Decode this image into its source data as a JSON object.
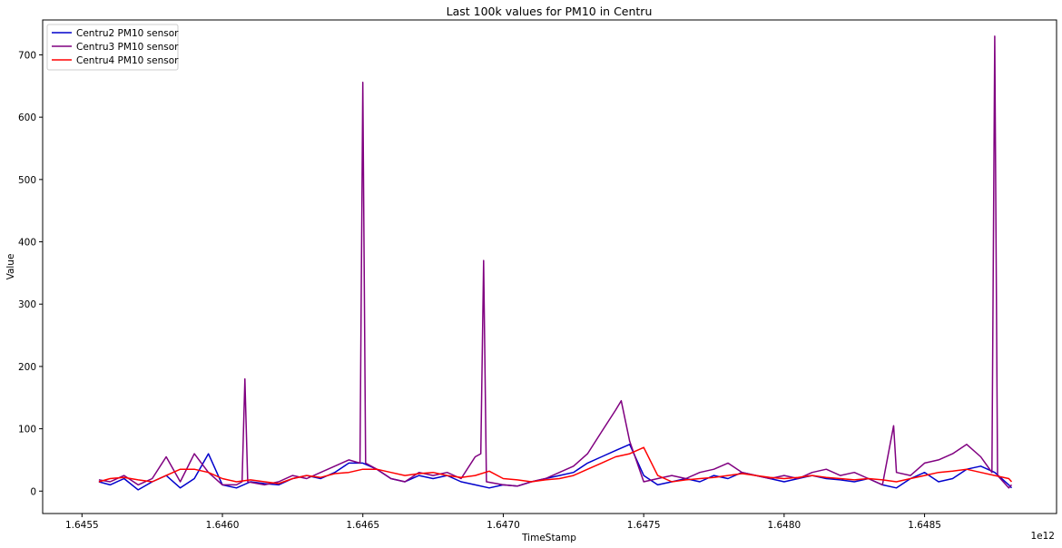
{
  "chart_data": {
    "type": "line",
    "title": "Last 100k values for PM10 in Centru",
    "xlabel": "TimeStamp",
    "ylabel": "Value",
    "x_offset_label": "1e12",
    "x_ticks": [
      1.6455,
      1.646,
      1.6465,
      1.647,
      1.6475,
      1.648,
      1.6485
    ],
    "x_tick_labels": [
      "1.6455",
      "1.6460",
      "1.6465",
      "1.6470",
      "1.6475",
      "1.6480",
      "1.6485"
    ],
    "y_ticks": [
      0,
      100,
      200,
      300,
      400,
      500,
      600,
      700
    ],
    "y_tick_labels": [
      "0",
      "100",
      "200",
      "300",
      "400",
      "500",
      "600",
      "700"
    ],
    "xlim": [
      1.64536,
      1.64897
    ],
    "ylim": [
      -36,
      756
    ],
    "grid": false,
    "legend_position": "upper-left",
    "series": [
      {
        "name": "Centru2 PM10 sensor",
        "color": "#0000cc",
        "x": [
          1.64556,
          1.6456,
          1.64565,
          1.6457,
          1.64575,
          1.6458,
          1.64585,
          1.6459,
          1.64595,
          1.646,
          1.64605,
          1.6461,
          1.64615,
          1.6462,
          1.64625,
          1.6463,
          1.64635,
          1.6464,
          1.64645,
          1.6465,
          1.64655,
          1.6466,
          1.64665,
          1.6467,
          1.64675,
          1.6468,
          1.64685,
          1.6469,
          1.64695,
          1.647,
          1.64705,
          1.6471,
          1.64715,
          1.6472,
          1.64725,
          1.6473,
          1.64735,
          1.6474,
          1.64745,
          1.6475,
          1.64755,
          1.6476,
          1.64765,
          1.6477,
          1.64775,
          1.6478,
          1.64785,
          1.6479,
          1.64795,
          1.648,
          1.64805,
          1.6481,
          1.64815,
          1.6482,
          1.64825,
          1.6483,
          1.64835,
          1.6484,
          1.64845,
          1.6485,
          1.64855,
          1.6486,
          1.64865,
          1.6487,
          1.64875,
          1.6488,
          1.64881
        ],
        "y": [
          15,
          10,
          20,
          2,
          15,
          25,
          5,
          20,
          60,
          10,
          5,
          15,
          12,
          10,
          20,
          25,
          20,
          30,
          45,
          45,
          35,
          20,
          15,
          25,
          20,
          25,
          15,
          10,
          5,
          10,
          8,
          15,
          20,
          25,
          30,
          45,
          55,
          65,
          75,
          25,
          10,
          15,
          20,
          15,
          25,
          20,
          30,
          25,
          20,
          15,
          20,
          25,
          20,
          18,
          15,
          20,
          10,
          5,
          20,
          30,
          15,
          20,
          35,
          40,
          30,
          10,
          5
        ]
      },
      {
        "name": "Centru3 PM10 sensor",
        "color": "#800080",
        "x": [
          1.64556,
          1.6456,
          1.64565,
          1.6457,
          1.64575,
          1.6458,
          1.64585,
          1.6459,
          1.64595,
          1.646,
          1.64605,
          1.64607,
          1.64608,
          1.64609,
          1.64615,
          1.6462,
          1.64625,
          1.6463,
          1.64635,
          1.6464,
          1.64645,
          1.64649,
          1.6465,
          1.64651,
          1.64655,
          1.6466,
          1.64665,
          1.6467,
          1.64675,
          1.6468,
          1.64685,
          1.6469,
          1.64692,
          1.64693,
          1.64694,
          1.647,
          1.64705,
          1.6471,
          1.64715,
          1.6472,
          1.64725,
          1.6473,
          1.64735,
          1.6474,
          1.64742,
          1.64745,
          1.6475,
          1.64755,
          1.6476,
          1.64765,
          1.6477,
          1.64775,
          1.6478,
          1.64785,
          1.6479,
          1.64795,
          1.648,
          1.64805,
          1.6481,
          1.64815,
          1.6482,
          1.64825,
          1.6483,
          1.64835,
          1.64839,
          1.6484,
          1.64845,
          1.6485,
          1.64855,
          1.6486,
          1.64865,
          1.6487,
          1.64874,
          1.64875,
          1.64876,
          1.6488,
          1.64881
        ],
        "y": [
          18,
          15,
          25,
          10,
          20,
          55,
          15,
          60,
          30,
          10,
          10,
          15,
          180,
          15,
          10,
          15,
          25,
          20,
          30,
          40,
          50,
          45,
          656,
          45,
          35,
          20,
          15,
          30,
          25,
          30,
          20,
          55,
          60,
          370,
          15,
          10,
          8,
          15,
          20,
          30,
          40,
          60,
          95,
          130,
          145,
          80,
          15,
          20,
          25,
          20,
          30,
          35,
          45,
          30,
          25,
          20,
          25,
          20,
          30,
          35,
          25,
          30,
          20,
          10,
          105,
          30,
          25,
          45,
          50,
          60,
          75,
          55,
          30,
          730,
          25,
          5,
          10
        ]
      },
      {
        "name": "Centru4 PM10 sensor",
        "color": "#ff0000",
        "x": [
          1.64556,
          1.6456,
          1.64565,
          1.6457,
          1.64575,
          1.6458,
          1.64585,
          1.6459,
          1.64595,
          1.646,
          1.64605,
          1.6461,
          1.64615,
          1.6462,
          1.64625,
          1.6463,
          1.64635,
          1.6464,
          1.64645,
          1.6465,
          1.64655,
          1.6466,
          1.64665,
          1.6467,
          1.64675,
          1.6468,
          1.64685,
          1.6469,
          1.64695,
          1.647,
          1.64705,
          1.6471,
          1.64715,
          1.6472,
          1.64725,
          1.6473,
          1.64735,
          1.6474,
          1.64745,
          1.6475,
          1.64755,
          1.6476,
          1.64765,
          1.6477,
          1.64775,
          1.6478,
          1.64785,
          1.6479,
          1.64795,
          1.648,
          1.64805,
          1.6481,
          1.64815,
          1.6482,
          1.64825,
          1.6483,
          1.64835,
          1.6484,
          1.64845,
          1.6485,
          1.64855,
          1.6486,
          1.64865,
          1.6487,
          1.64875,
          1.6488,
          1.64881
        ],
        "y": [
          15,
          20,
          22,
          18,
          15,
          25,
          35,
          35,
          30,
          20,
          15,
          18,
          15,
          12,
          20,
          25,
          22,
          28,
          30,
          35,
          35,
          30,
          25,
          28,
          30,
          25,
          22,
          25,
          32,
          20,
          18,
          15,
          18,
          20,
          25,
          35,
          45,
          55,
          60,
          70,
          25,
          15,
          18,
          20,
          22,
          25,
          28,
          25,
          22,
          20,
          22,
          25,
          22,
          20,
          18,
          20,
          18,
          15,
          20,
          25,
          30,
          32,
          35,
          30,
          25,
          20,
          15
        ]
      }
    ]
  }
}
